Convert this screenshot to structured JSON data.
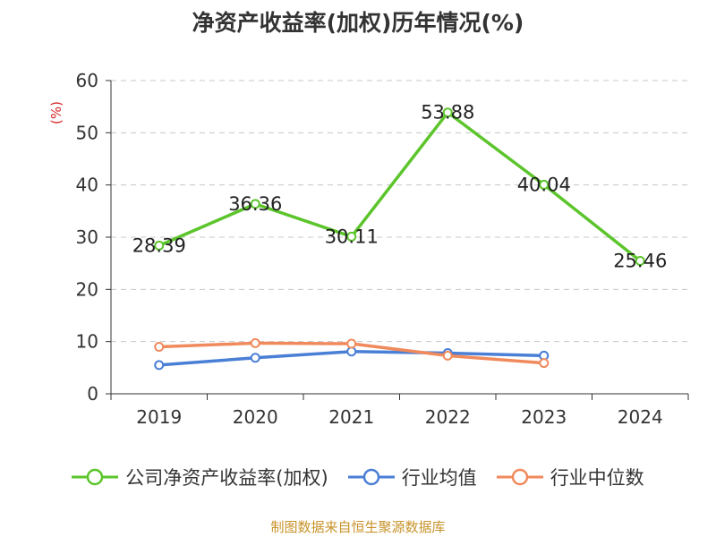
{
  "title": "净资产收益率(加权)历年情况(%)",
  "source": "制图数据来自恒生聚源数据库",
  "chart_data": {
    "type": "line",
    "title": "净资产收益率(加权)历年情况(%)",
    "ylabel": "(%)",
    "categories": [
      "2019",
      "2020",
      "2021",
      "2022",
      "2023",
      "2024"
    ],
    "ylim": [
      0,
      60
    ],
    "yticks": [
      0,
      10,
      20,
      30,
      40,
      50,
      60
    ],
    "grid": true,
    "legend_position": "bottom",
    "series": [
      {
        "name": "公司净资产收益率(加权)",
        "color": "#5cc52b",
        "values": [
          28.39,
          36.36,
          30.11,
          53.88,
          40.04,
          25.46
        ],
        "labels": [
          "28.39",
          "36.36",
          "30.11",
          "53.88",
          "40.04",
          "25.46"
        ]
      },
      {
        "name": "行业均值",
        "color": "#4a7fd6",
        "values": [
          5.5,
          6.9,
          8.1,
          7.8,
          7.3,
          null
        ]
      },
      {
        "name": "行业中位数",
        "color": "#f08a5d",
        "values": [
          9.0,
          9.7,
          9.6,
          7.3,
          5.9,
          null
        ]
      }
    ]
  }
}
